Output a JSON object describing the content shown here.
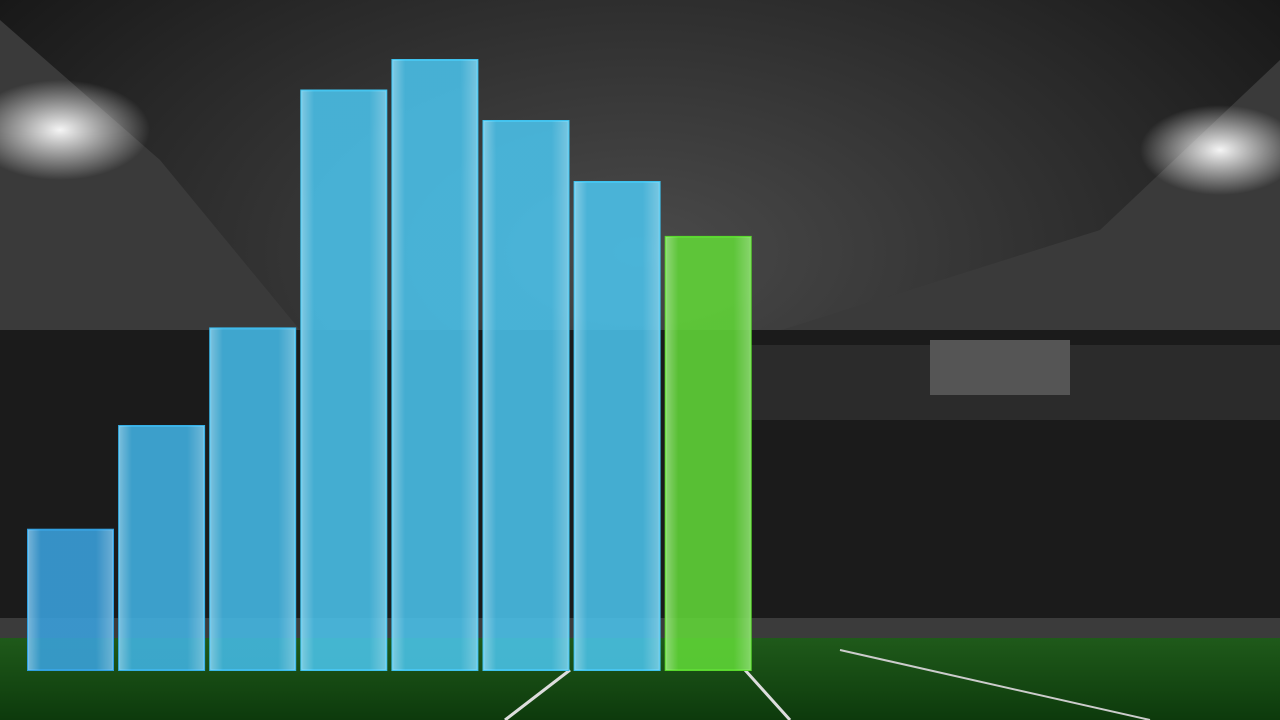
{
  "chart_data": {
    "type": "bar",
    "categories": [
      null,
      null,
      null,
      null,
      null,
      null,
      null,
      null
    ],
    "values": [
      23,
      40,
      56,
      95,
      100,
      90,
      80,
      71
    ],
    "colors": [
      "#2f9fe0",
      "#36b0e6",
      "#3ab8ea",
      "#3fc2ee",
      "#3fc2ee",
      "#3fc2ee",
      "#3fc2ee",
      "#58d82c"
    ],
    "ylim": [
      0,
      100
    ],
    "grid": false
  }
}
